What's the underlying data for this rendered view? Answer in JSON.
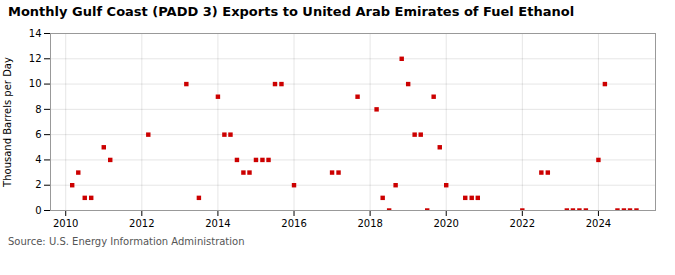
{
  "chart_data": {
    "type": "scatter",
    "title": "Monthly Gulf Coast (PADD 3) Exports to United Arab Emirates of Fuel Ethanol",
    "ylabel": "Thousand Barrels per Day",
    "annotation": "Source: U.S. Energy Information Administration",
    "color": "#cc0000",
    "marker": "square",
    "grid": true,
    "xlim": [
      2009.6,
      2025.5
    ],
    "xticks": [
      2010,
      2012,
      2014,
      2016,
      2018,
      2020,
      2022,
      2024
    ],
    "ylim": [
      0,
      14
    ],
    "yticks": [
      0,
      2,
      4,
      6,
      8,
      10,
      12,
      14
    ],
    "x": [
      2010.17,
      2010.33,
      2010.5,
      2010.67,
      2011.0,
      2011.17,
      2012.17,
      2013.17,
      2013.5,
      2014.0,
      2014.17,
      2014.33,
      2014.5,
      2014.67,
      2014.83,
      2015.0,
      2015.17,
      2015.33,
      2015.5,
      2015.67,
      2016.0,
      2017.0,
      2017.17,
      2017.67,
      2018.17,
      2018.33,
      2018.5,
      2018.67,
      2018.83,
      2019.0,
      2019.17,
      2019.33,
      2019.5,
      2019.67,
      2019.83,
      2020.0,
      2020.5,
      2020.67,
      2020.83,
      2022.0,
      2022.5,
      2022.67,
      2023.17,
      2023.33,
      2023.5,
      2023.67,
      2024.0,
      2024.17,
      2024.5,
      2024.67,
      2024.83,
      2025.0
    ],
    "values": [
      2,
      3,
      1,
      1,
      5,
      4,
      6,
      10,
      1,
      9,
      6,
      6,
      4,
      3,
      3,
      4,
      4,
      4,
      10,
      10,
      2,
      3,
      3,
      9,
      8,
      1,
      0,
      2,
      12,
      10,
      6,
      6,
      0,
      9,
      5,
      2,
      1,
      1,
      1,
      0,
      3,
      3,
      0,
      0,
      0,
      0,
      4,
      10,
      0,
      0,
      0,
      0
    ]
  }
}
